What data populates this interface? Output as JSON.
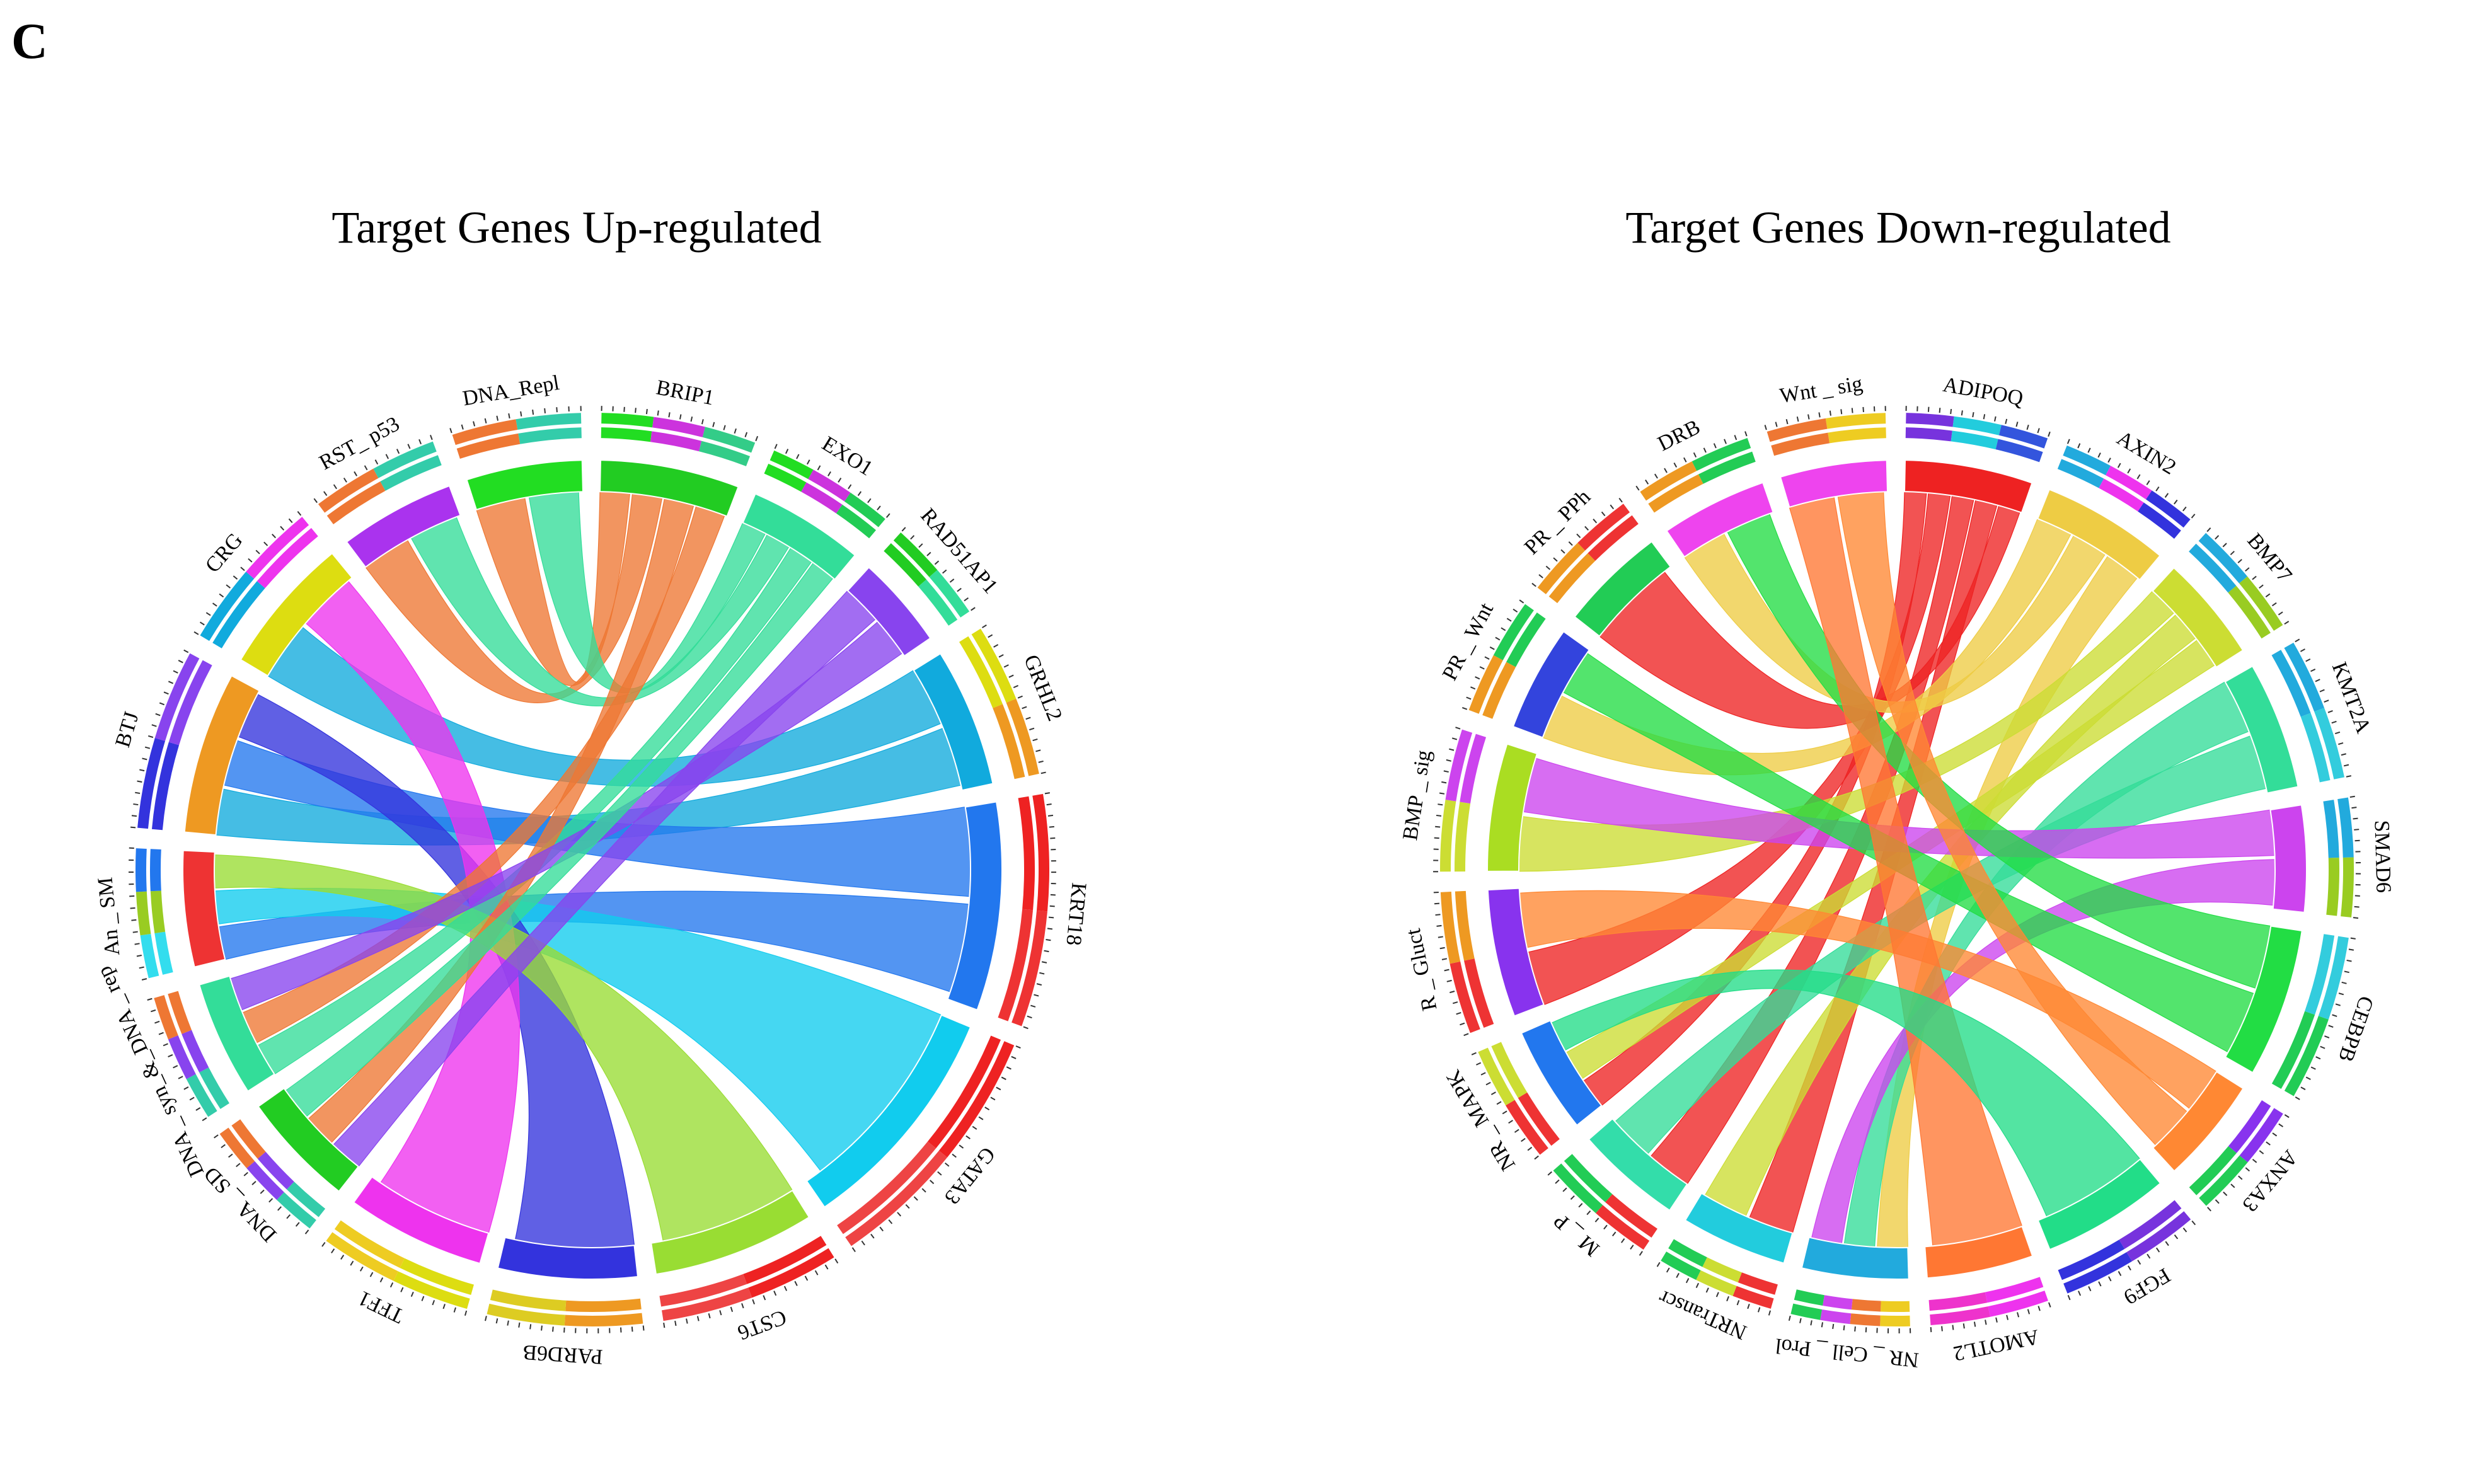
{
  "panel_label": "C",
  "chart_data": [
    {
      "type": "chord",
      "title": "Target Genes Up-regulated",
      "segments": [
        {
          "name": "BRIP1",
          "size": 6,
          "color": "#22cc22",
          "inner": [
            "#22dd22",
            "#cc33dd",
            "#33cc88"
          ]
        },
        {
          "name": "EXO1",
          "size": 5,
          "color": "#33dd99",
          "inner": [
            "#22dd22",
            "#cc33dd",
            "#22cc55"
          ]
        },
        {
          "name": "RAD51AP1",
          "size": 4,
          "color": "#8844ee",
          "inner": [
            "#22cc22",
            "#33dd99"
          ]
        },
        {
          "name": "GRHL2",
          "size": 6,
          "color": "#11aadd",
          "inner": [
            "#dddd11",
            "#ee9922"
          ]
        },
        {
          "name": "KRT18",
          "size": 9,
          "color": "#2277ee",
          "inner": [
            "#ee2222",
            "#ee3333"
          ]
        },
        {
          "name": "GATA3",
          "size": 10,
          "color": "#11ccee",
          "inner": [
            "#ee2222",
            "#ee4444"
          ]
        },
        {
          "name": "CST6",
          "size": 7,
          "color": "#99dd33",
          "inner": [
            "#ee2222",
            "#ee4444"
          ]
        },
        {
          "name": "PARD6B",
          "size": 6,
          "color": "#3333dd",
          "inner": [
            "#ee9922",
            "#ddcc22"
          ]
        },
        {
          "name": "TFF1",
          "size": 6,
          "color": "#ee33ee",
          "inner": [
            "#dddd11",
            "#eecc22"
          ]
        },
        {
          "name": "DNA _ SD",
          "size": 5,
          "color": "#22cc22",
          "inner": [
            "#33ccaa",
            "#8844ee",
            "#ee7733"
          ]
        },
        {
          "name": "DNA _ syn_&_DNA _ rep",
          "size": 5,
          "color": "#33dd99",
          "inner": [
            "#33ccaa",
            "#8844ee",
            "#ee7733"
          ]
        },
        {
          "name": "An _ SM",
          "size": 5,
          "color": "#ee3333",
          "inner": [
            "#33ddee",
            "#99cc22",
            "#2277ee"
          ]
        },
        {
          "name": "BTJ",
          "size": 7,
          "color": "#ee9922",
          "inner": [
            "#3333dd",
            "#8844ee"
          ]
        },
        {
          "name": "CRG",
          "size": 6,
          "color": "#dddd11",
          "inner": [
            "#11aadd",
            "#ee33ee"
          ]
        },
        {
          "name": "RST_ p53",
          "size": 5,
          "color": "#aa33ee",
          "inner": [
            "#ee7733",
            "#33ccaa"
          ]
        },
        {
          "name": "DNA_Repl",
          "size": 5,
          "color": "#22dd22",
          "inner": [
            "#ee7733",
            "#33ccaa"
          ]
        }
      ],
      "links": [
        {
          "from": "DNA_Repl",
          "to": "BRIP1",
          "color": "#ee7733"
        },
        {
          "from": "RST_ p53",
          "to": "BRIP1",
          "color": "#ee7733"
        },
        {
          "from": "DNA_Repl",
          "to": "EXO1",
          "color": "#33dd99"
        },
        {
          "from": "RST_ p53",
          "to": "EXO1",
          "color": "#33dd99"
        },
        {
          "from": "CRG",
          "to": "GRHL2",
          "color": "#11aadd"
        },
        {
          "from": "BTJ",
          "to": "GRHL2",
          "color": "#11aadd"
        },
        {
          "from": "BTJ",
          "to": "KRT18",
          "color": "#2277ee"
        },
        {
          "from": "An _ SM",
          "to": "KRT18",
          "color": "#2277ee"
        },
        {
          "from": "An _ SM",
          "to": "GATA3",
          "color": "#11ccee"
        },
        {
          "from": "BTJ",
          "to": "PARD6B",
          "color": "#3333dd"
        },
        {
          "from": "CRG",
          "to": "TFF1",
          "color": "#ee33ee"
        },
        {
          "from": "An _ SM",
          "to": "CST6",
          "color": "#99dd33"
        },
        {
          "from": "DNA _ SD",
          "to": "RAD51AP1",
          "color": "#8844ee"
        },
        {
          "from": "DNA _ syn_&_DNA _ rep",
          "to": "EXO1",
          "color": "#33dd99"
        },
        {
          "from": "DNA _ SD",
          "to": "BRIP1",
          "color": "#ee7733"
        },
        {
          "from": "DNA _ syn_&_DNA _ rep",
          "to": "BRIP1",
          "color": "#ee7733"
        },
        {
          "from": "DNA _ syn_&_DNA _ rep",
          "to": "RAD51AP1",
          "color": "#8844ee"
        },
        {
          "from": "DNA _ SD",
          "to": "EXO1",
          "color": "#33dd99"
        }
      ]
    },
    {
      "type": "chord",
      "title": "Target Genes Down-regulated",
      "segments": [
        {
          "name": "ADIPOQ",
          "size": 6,
          "color": "#ee2222",
          "inner": [
            "#7733dd",
            "#22ccdd",
            "#3355dd"
          ]
        },
        {
          "name": "AXIN2",
          "size": 6,
          "color": "#eecc44",
          "inner": [
            "#22aadd",
            "#ee33ee",
            "#3333dd"
          ]
        },
        {
          "name": "BMP7",
          "size": 5,
          "color": "#ccdd33",
          "inner": [
            "#22aadd",
            "#99cc22"
          ]
        },
        {
          "name": "KMT2A",
          "size": 6,
          "color": "#33dd99",
          "inner": [
            "#22aadd",
            "#33ccdd"
          ]
        },
        {
          "name": "SMAD6",
          "size": 5,
          "color": "#cc44ee",
          "inner": [
            "#22aadd",
            "#99cc22"
          ]
        },
        {
          "name": "CEBPB",
          "size": 7,
          "color": "#22dd44",
          "inner": [
            "#33ccdd",
            "#22cc55"
          ]
        },
        {
          "name": "ANXA3",
          "size": 5,
          "color": "#ff8833",
          "inner": [
            "#8833ee",
            "#22cc55"
          ]
        },
        {
          "name": "FGF9",
          "size": 6,
          "color": "#22dd88",
          "inner": [
            "#7733dd",
            "#3333dd"
          ]
        },
        {
          "name": "AMOTL2",
          "size": 5,
          "color": "#ff7733",
          "inner": [
            "#ee33ee",
            "#ee33cc"
          ]
        },
        {
          "name": "NR _ Cell _ Prol",
          "size": 5,
          "color": "#22aadd",
          "inner": [
            "#eecc22",
            "#ee7733",
            "#cc44ee",
            "#22cc55"
          ]
        },
        {
          "name": "NRTranscr",
          "size": 5,
          "color": "#22ccdd",
          "inner": [
            "#ee3333",
            "#ccdd33",
            "#22cc55"
          ]
        },
        {
          "name": "M _ P",
          "size": 5,
          "color": "#33ddaa",
          "inner": [
            "#ee3333",
            "#22cc55"
          ]
        },
        {
          "name": "NR _ MAPK",
          "size": 5,
          "color": "#2277ee",
          "inner": [
            "#ee3333",
            "#ccdd33"
          ]
        },
        {
          "name": "R _ Gluct",
          "size": 6,
          "color": "#8833ee",
          "inner": [
            "#ee3333",
            "#ee9922"
          ]
        },
        {
          "name": "BMP _ sig",
          "size": 6,
          "color": "#aadd22",
          "inner": [
            "#ccdd33",
            "#cc44ee"
          ]
        },
        {
          "name": "PR _ Wnt",
          "size": 5,
          "color": "#3344dd",
          "inner": [
            "#ee9922",
            "#22cc55"
          ]
        },
        {
          "name": "PR _ PPh",
          "size": 5,
          "color": "#22cc55",
          "inner": [
            "#ee9922",
            "#ee3333"
          ]
        },
        {
          "name": "DRB",
          "size": 5,
          "color": "#ee44ee",
          "inner": [
            "#ee9922",
            "#22cc55"
          ]
        },
        {
          "name": "Wnt _ sig",
          "size": 5,
          "color": "#ee44ee",
          "inner": [
            "#ee7733",
            "#eecc22"
          ]
        }
      ],
      "links": [
        {
          "from": "ADIPOQ",
          "to": "NR _ MAPK",
          "color": "#ee2222"
        },
        {
          "from": "ADIPOQ",
          "to": "R _ Gluct",
          "color": "#ee2222"
        },
        {
          "from": "ADIPOQ",
          "to": "M _ P",
          "color": "#ee2222"
        },
        {
          "from": "ADIPOQ",
          "to": "NRTranscr",
          "color": "#ee2222"
        },
        {
          "from": "ADIPOQ",
          "to": "PR _ PPh",
          "color": "#ee2222"
        },
        {
          "from": "AXIN2",
          "to": "PR _ Wnt",
          "color": "#eecc44"
        },
        {
          "from": "AXIN2",
          "to": "DRB",
          "color": "#eecc44"
        },
        {
          "from": "AXIN2",
          "to": "NR _ Cell _ Prol",
          "color": "#eecc44"
        },
        {
          "from": "BMP7",
          "to": "BMP _ sig",
          "color": "#ccdd33"
        },
        {
          "from": "BMP7",
          "to": "NRTranscr",
          "color": "#ccdd33"
        },
        {
          "from": "BMP7",
          "to": "NR _ MAPK",
          "color": "#ccdd33"
        },
        {
          "from": "KMT2A",
          "to": "NR _ Cell _ Prol",
          "color": "#33dd99"
        },
        {
          "from": "KMT2A",
          "to": "M _ P",
          "color": "#33dd99"
        },
        {
          "from": "SMAD6",
          "to": "BMP _ sig",
          "color": "#cc44ee"
        },
        {
          "from": "SMAD6",
          "to": "NR _ Cell _ Prol",
          "color": "#cc44ee"
        },
        {
          "from": "CEBPB",
          "to": "DRB",
          "color": "#22dd44"
        },
        {
          "from": "CEBPB",
          "to": "PR _ Wnt",
          "color": "#22dd44"
        },
        {
          "from": "ANXA3",
          "to": "R _ Gluct",
          "color": "#ff8833"
        },
        {
          "from": "AMOTL2",
          "to": "Wnt _ sig",
          "color": "#ff7733"
        },
        {
          "from": "FGF9",
          "to": "NR _ MAPK",
          "color": "#22dd88"
        },
        {
          "from": "Wnt _ sig",
          "to": "ANXA3",
          "color": "#ff8833"
        }
      ]
    }
  ]
}
